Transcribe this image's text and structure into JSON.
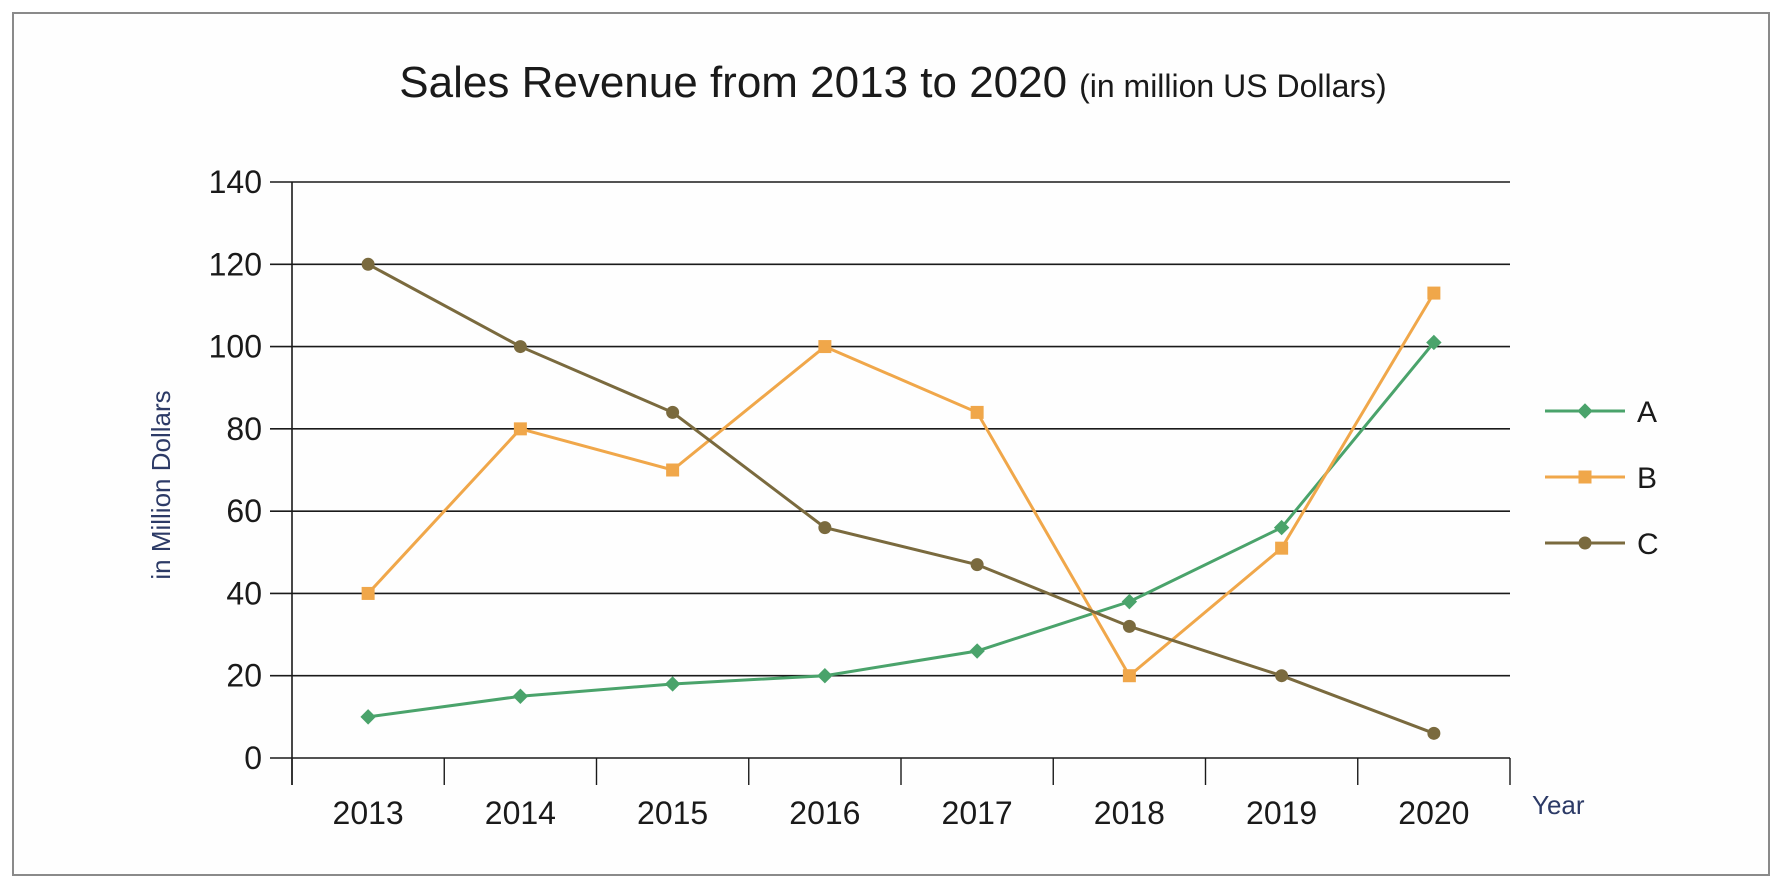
{
  "chart_data": {
    "type": "line",
    "title": "Sales Revenue from 2013 to 2020",
    "subtitle": "(in million US Dollars)",
    "xlabel": "Year",
    "ylabel": "in Million Dollars",
    "categories": [
      "2013",
      "2014",
      "2015",
      "2016",
      "2017",
      "2018",
      "2019",
      "2020"
    ],
    "ylim": [
      0,
      140
    ],
    "yticks": [
      0,
      20,
      40,
      60,
      80,
      100,
      120,
      140
    ],
    "grid": true,
    "legend_position": "right",
    "series": [
      {
        "name": "A",
        "color": "#4aa36b",
        "marker": "diamond",
        "values": [
          10,
          15,
          18,
          20,
          26,
          38,
          56,
          101
        ]
      },
      {
        "name": "B",
        "color": "#f0a74a",
        "marker": "square",
        "values": [
          40,
          80,
          70,
          100,
          84,
          20,
          51,
          113
        ]
      },
      {
        "name": "C",
        "color": "#7a6a3e",
        "marker": "circle",
        "values": [
          120,
          100,
          84,
          56,
          47,
          32,
          20,
          6
        ]
      }
    ]
  }
}
